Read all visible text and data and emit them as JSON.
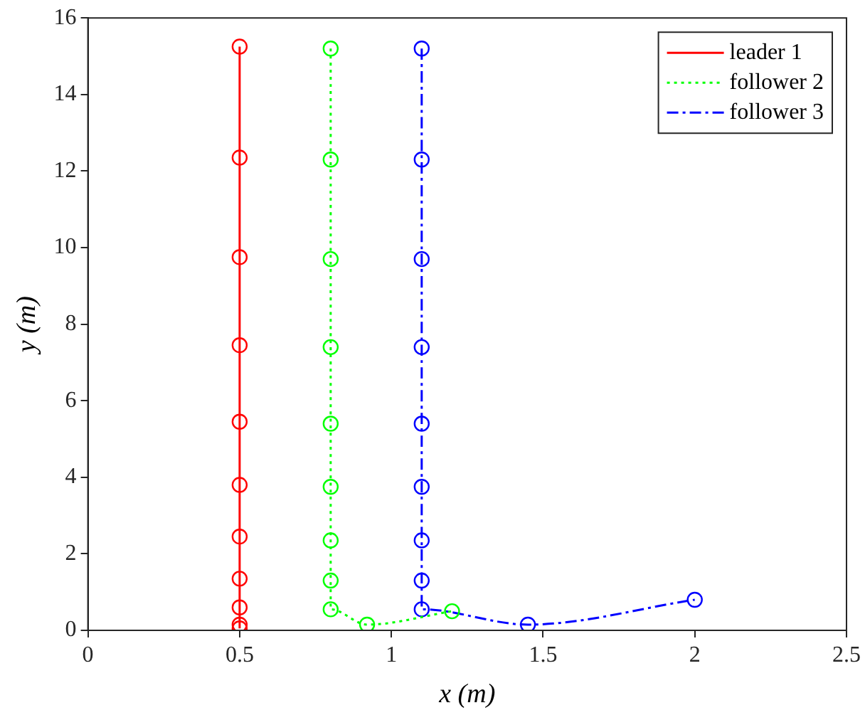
{
  "chart_data": {
    "type": "line",
    "xlabel": "x (m)",
    "ylabel": "y (m)",
    "xlim": [
      0,
      2.5
    ],
    "ylim": [
      0,
      16
    ],
    "xticks": [
      0,
      0.5,
      1,
      1.5,
      2,
      2.5
    ],
    "yticks": [
      0,
      2,
      4,
      6,
      8,
      10,
      12,
      14,
      16
    ],
    "grid": false,
    "legend": "top right",
    "marker": "circle",
    "series": [
      {
        "name": "leader 1",
        "color": "#ff0000",
        "line_style": "solid",
        "x": [
          0.5,
          0.5,
          0.5,
          0.5,
          0.5,
          0.5,
          0.5,
          0.5,
          0.5,
          0.5,
          0.5
        ],
        "values": [
          15.25,
          12.35,
          9.75,
          7.45,
          5.45,
          3.8,
          2.45,
          1.35,
          0.6,
          0.15,
          0.05
        ]
      },
      {
        "name": "follower 2",
        "color": "#00ff00",
        "line_style": "dotted",
        "x": [
          0.8,
          0.8,
          0.8,
          0.8,
          0.8,
          0.8,
          0.8,
          0.8,
          0.8,
          0.92,
          1.2
        ],
        "values": [
          15.2,
          12.3,
          9.7,
          7.4,
          5.4,
          3.75,
          2.35,
          1.3,
          0.55,
          0.15,
          0.5
        ]
      },
      {
        "name": "follower 3",
        "color": "#0000ff",
        "line_style": "dashdot",
        "x": [
          1.1,
          1.1,
          1.1,
          1.1,
          1.1,
          1.1,
          1.1,
          1.1,
          1.1,
          1.45,
          2.0
        ],
        "values": [
          15.2,
          12.3,
          9.7,
          7.4,
          5.4,
          3.75,
          2.35,
          1.3,
          0.55,
          0.15,
          0.8
        ]
      }
    ]
  }
}
